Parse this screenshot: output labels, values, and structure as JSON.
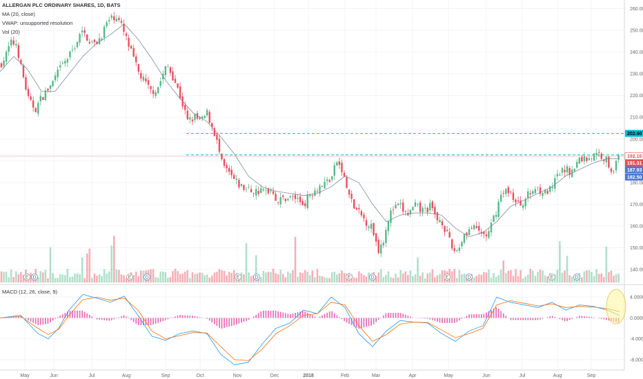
{
  "legend": {
    "symbol": "ALLERGAN PLC ORDINARY SHARES, 1D, BATS",
    "ma": "MA (20, close)",
    "vwap": "VWAP: unsupported resolution",
    "vol": "Vol (20)",
    "macd": "MACD (12, 26, close, 9)"
  },
  "colors": {
    "up": "#53b987",
    "down": "#eb4d5c",
    "ma": "#7e8a9a",
    "cyan": "#00bcd4",
    "macd": "#2196f3",
    "signal": "#ff6d00",
    "hist": "#e040a0",
    "highlight": "#fff59d"
  },
  "chart_data": [
    {
      "type": "candlestick",
      "title": "ALLERGAN PLC ORDINARY SHARES, 1D, BATS",
      "ylim": [
        134,
        263
      ],
      "y_ticks": [
        "260.00",
        "250.00",
        "240.00",
        "230.00",
        "220.00",
        "210.00",
        "200.00",
        "190.00",
        "180.00",
        "170.00",
        "160.00",
        "150.00",
        "140.00"
      ],
      "x_ticks": [
        "May",
        "Jun",
        "Jul",
        "Aug",
        "Sep",
        "Oct",
        "Nov",
        "Dec",
        "2018",
        "Feb",
        "Mar",
        "Apr",
        "May",
        "Jun",
        "Jul",
        "Aug",
        "Sep"
      ],
      "close_path": [
        [
          0,
          234
        ],
        [
          8,
          238
        ],
        [
          15,
          244
        ],
        [
          25,
          244
        ],
        [
          28,
          236
        ],
        [
          35,
          227
        ],
        [
          42,
          217
        ],
        [
          52,
          214
        ],
        [
          60,
          219
        ],
        [
          75,
          225
        ],
        [
          88,
          233
        ],
        [
          100,
          238
        ],
        [
          110,
          244
        ],
        [
          118,
          249
        ],
        [
          126,
          247
        ],
        [
          136,
          243
        ],
        [
          146,
          247
        ],
        [
          156,
          254
        ],
        [
          168,
          257
        ],
        [
          176,
          252
        ],
        [
          183,
          246
        ],
        [
          190,
          240
        ],
        [
          200,
          231
        ],
        [
          210,
          226
        ],
        [
          218,
          222
        ],
        [
          228,
          223
        ],
        [
          242,
          234
        ],
        [
          252,
          228
        ],
        [
          262,
          219
        ],
        [
          272,
          208
        ],
        [
          282,
          210
        ],
        [
          292,
          208
        ],
        [
          300,
          212
        ],
        [
          312,
          202
        ],
        [
          322,
          188
        ],
        [
          332,
          184
        ],
        [
          342,
          180
        ],
        [
          355,
          177
        ],
        [
          370,
          176
        ],
        [
          385,
          176
        ],
        [
          395,
          177
        ],
        [
          402,
          171
        ],
        [
          412,
          173
        ],
        [
          428,
          173
        ],
        [
          440,
          170
        ],
        [
          450,
          175
        ],
        [
          462,
          178
        ],
        [
          472,
          180
        ],
        [
          482,
          183
        ],
        [
          488,
          190
        ],
        [
          496,
          185
        ],
        [
          502,
          178
        ],
        [
          512,
          169
        ],
        [
          525,
          164
        ],
        [
          540,
          159
        ],
        [
          548,
          149
        ],
        [
          555,
          153
        ],
        [
          562,
          163
        ],
        [
          570,
          168
        ],
        [
          580,
          169
        ],
        [
          590,
          165
        ],
        [
          602,
          169
        ],
        [
          612,
          167
        ],
        [
          625,
          169
        ],
        [
          632,
          163
        ],
        [
          640,
          163
        ],
        [
          648,
          156
        ],
        [
          656,
          149
        ],
        [
          664,
          149
        ],
        [
          672,
          156
        ],
        [
          682,
          159
        ],
        [
          692,
          158
        ],
        [
          700,
          156
        ],
        [
          708,
          156
        ],
        [
          716,
          164
        ],
        [
          726,
          174
        ],
        [
          738,
          177
        ],
        [
          748,
          170
        ],
        [
          755,
          170
        ],
        [
          765,
          174
        ],
        [
          778,
          178
        ],
        [
          790,
          175
        ],
        [
          800,
          177
        ],
        [
          808,
          183
        ],
        [
          818,
          186
        ],
        [
          830,
          185
        ],
        [
          840,
          191
        ],
        [
          850,
          191
        ],
        [
          858,
          192
        ],
        [
          868,
          193
        ],
        [
          878,
          191
        ],
        [
          886,
          186
        ],
        [
          892,
          188
        ],
        [
          898,
          192
        ]
      ],
      "ma_path": [
        [
          0,
          231
        ],
        [
          20,
          238
        ],
        [
          40,
          232
        ],
        [
          60,
          222
        ],
        [
          80,
          222
        ],
        [
          100,
          230
        ],
        [
          120,
          238
        ],
        [
          140,
          244
        ],
        [
          160,
          248
        ],
        [
          180,
          253
        ],
        [
          200,
          246
        ],
        [
          220,
          237
        ],
        [
          240,
          227
        ],
        [
          260,
          219
        ],
        [
          280,
          212
        ],
        [
          300,
          208
        ],
        [
          320,
          201
        ],
        [
          340,
          193
        ],
        [
          360,
          183
        ],
        [
          380,
          178
        ],
        [
          400,
          176
        ],
        [
          420,
          175
        ],
        [
          440,
          174
        ],
        [
          460,
          175
        ],
        [
          480,
          178
        ],
        [
          500,
          183
        ],
        [
          520,
          180
        ],
        [
          540,
          170
        ],
        [
          560,
          162
        ],
        [
          580,
          165
        ],
        [
          600,
          166
        ],
        [
          620,
          166
        ],
        [
          640,
          165
        ],
        [
          660,
          159
        ],
        [
          680,
          155
        ],
        [
          700,
          157
        ],
        [
          720,
          162
        ],
        [
          740,
          169
        ],
        [
          760,
          172
        ],
        [
          780,
          175
        ],
        [
          800,
          178
        ],
        [
          820,
          183
        ],
        [
          840,
          186
        ],
        [
          860,
          189
        ],
        [
          880,
          191
        ],
        [
          898,
          191
        ]
      ],
      "support_levels": [
        202.6,
        192.7
      ],
      "price_badges": [
        {
          "label": "202.60",
          "price": 202.6,
          "color": "#00bcd4",
          "text_color": "#000000"
        },
        {
          "label": "192.16",
          "price": 192.16,
          "color": "#ffffff",
          "text_color": "#eb4d5c"
        },
        {
          "label": "191.31",
          "price": 191.31,
          "color": "#eb4d5c",
          "text_color": "#ffffff"
        },
        {
          "label": "187.93",
          "price": 187.93,
          "color": "#4a78d6",
          "text_color": "#ffffff"
        },
        {
          "label": "182.50",
          "price": 182.5,
          "color": "#4a78d6",
          "text_color": "#ffffff"
        }
      ]
    },
    {
      "type": "bar",
      "title": "Vol (20)",
      "description_markers": [
        "E",
        "D",
        "E",
        "D",
        "E",
        "D",
        "E",
        "D",
        "E",
        "D",
        "E",
        "D",
        "E",
        "D"
      ]
    },
    {
      "type": "line",
      "title": "MACD (12, 26, close, 9)",
      "ylim": [
        -10,
        6
      ],
      "y_ticks": [
        "4.0000",
        "0.0000",
        "-4.0000",
        "-8.0000"
      ],
      "series": [
        {
          "values_path": [
            [
              0,
              0.0
            ],
            [
              30,
              0.5
            ],
            [
              55,
              -3.0
            ],
            [
              70,
              -4.0
            ],
            [
              85,
              -2.0
            ],
            [
              100,
              1.5
            ],
            [
              120,
              4.5
            ],
            [
              140,
              3.8
            ],
            [
              160,
              3.0
            ],
            [
              180,
              4.2
            ],
            [
              200,
              0.5
            ],
            [
              220,
              -3.5
            ],
            [
              240,
              -4.3
            ],
            [
              260,
              -3.0
            ],
            [
              280,
              -2.5
            ],
            [
              300,
              -3.0
            ],
            [
              320,
              -7.0
            ],
            [
              340,
              -9.0
            ],
            [
              360,
              -8.5
            ],
            [
              380,
              -5.0
            ],
            [
              400,
              -2.0
            ],
            [
              420,
              -1.0
            ],
            [
              440,
              1.5
            ],
            [
              460,
              0.8
            ],
            [
              480,
              4.0
            ],
            [
              500,
              2.0
            ],
            [
              520,
              -3.0
            ],
            [
              540,
              -5.5
            ],
            [
              560,
              -2.5
            ],
            [
              580,
              -0.5
            ],
            [
              600,
              -0.8
            ],
            [
              620,
              -1.0
            ],
            [
              640,
              -3.0
            ],
            [
              660,
              -4.5
            ],
            [
              680,
              -2.5
            ],
            [
              700,
              -1.5
            ],
            [
              720,
              4.0
            ],
            [
              740,
              3.0
            ],
            [
              760,
              2.5
            ],
            [
              780,
              2.0
            ],
            [
              800,
              3.0
            ],
            [
              820,
              1.5
            ],
            [
              840,
              2.5
            ],
            [
              860,
              2.2
            ],
            [
              880,
              1.5
            ],
            [
              898,
              0.5
            ]
          ]
        },
        {
          "values_path": [
            [
              0,
              0.0
            ],
            [
              30,
              0.3
            ],
            [
              55,
              -2.0
            ],
            [
              70,
              -3.2
            ],
            [
              85,
              -2.2
            ],
            [
              100,
              0.5
            ],
            [
              120,
              3.5
            ],
            [
              140,
              4.0
            ],
            [
              160,
              3.4
            ],
            [
              180,
              3.8
            ],
            [
              200,
              1.5
            ],
            [
              220,
              -2.5
            ],
            [
              240,
              -4.0
            ],
            [
              260,
              -3.4
            ],
            [
              280,
              -2.8
            ],
            [
              300,
              -2.9
            ],
            [
              320,
              -5.5
            ],
            [
              340,
              -8.0
            ],
            [
              360,
              -8.2
            ],
            [
              380,
              -6.0
            ],
            [
              400,
              -3.0
            ],
            [
              420,
              -1.5
            ],
            [
              440,
              0.5
            ],
            [
              460,
              0.8
            ],
            [
              480,
              3.0
            ],
            [
              500,
              2.5
            ],
            [
              520,
              -1.5
            ],
            [
              540,
              -4.5
            ],
            [
              560,
              -3.2
            ],
            [
              580,
              -1.2
            ],
            [
              600,
              -0.8
            ],
            [
              620,
              -0.9
            ],
            [
              640,
              -2.3
            ],
            [
              660,
              -3.8
            ],
            [
              680,
              -3.0
            ],
            [
              700,
              -2.0
            ],
            [
              720,
              2.5
            ],
            [
              740,
              3.3
            ],
            [
              760,
              2.8
            ],
            [
              780,
              2.3
            ],
            [
              800,
              2.7
            ],
            [
              820,
              2.0
            ],
            [
              840,
              2.2
            ],
            [
              860,
              2.1
            ],
            [
              880,
              1.8
            ],
            [
              898,
              1.2
            ]
          ]
        }
      ]
    }
  ]
}
